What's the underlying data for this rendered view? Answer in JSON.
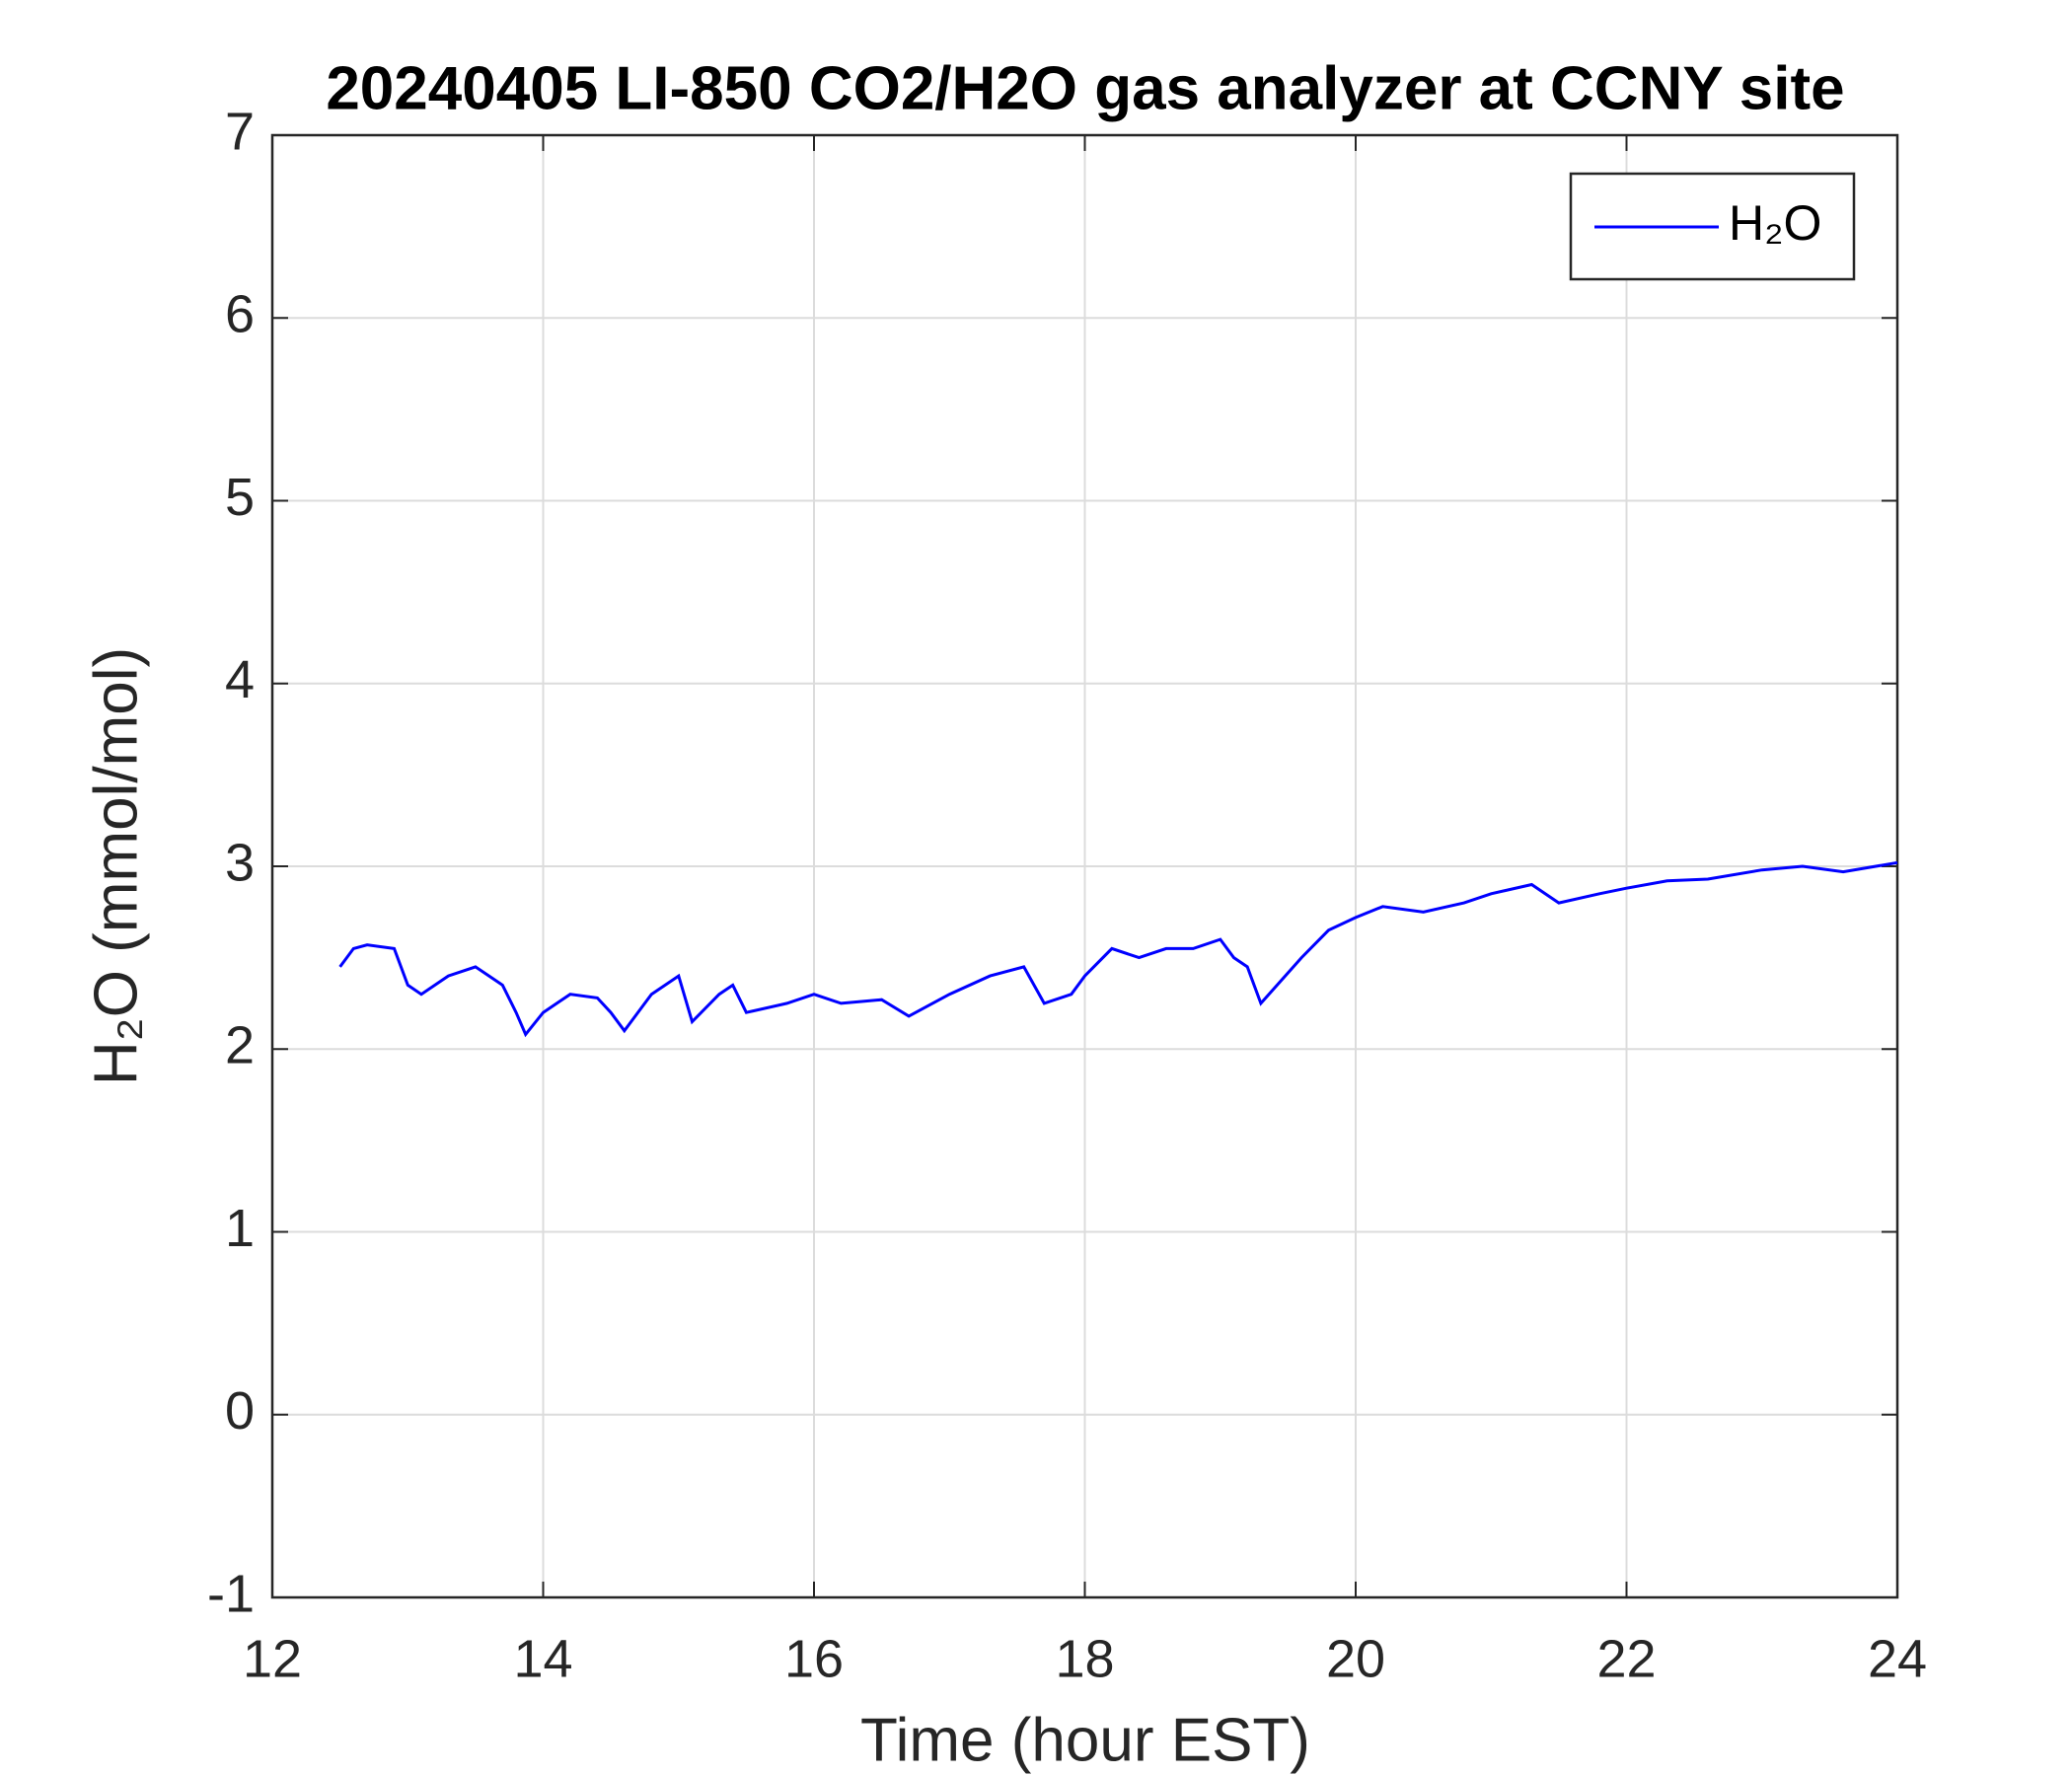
{
  "chart_data": {
    "type": "line",
    "title": "20240405 LI-850 CO2/H2O gas analyzer at CCNY site",
    "xlabel": "Time (hour EST)",
    "ylabel": "H₂O (mmol/mol)",
    "x": [
      12.5,
      12.6,
      12.7,
      12.9,
      13.0,
      13.1,
      13.3,
      13.5,
      13.6,
      13.7,
      13.8,
      13.87,
      14.0,
      14.2,
      14.4,
      14.5,
      14.6,
      14.8,
      15.0,
      15.1,
      15.3,
      15.4,
      15.5,
      15.8,
      16.0,
      16.2,
      16.5,
      16.7,
      17.0,
      17.3,
      17.55,
      17.7,
      17.9,
      18.0,
      18.2,
      18.4,
      18.6,
      18.8,
      19.0,
      19.1,
      19.2,
      19.3,
      19.6,
      19.8,
      20.0,
      20.2,
      20.5,
      20.8,
      21.0,
      21.3,
      21.5,
      21.8,
      22.0,
      22.3,
      22.6,
      23.0,
      23.3,
      23.6,
      24.0
    ],
    "series": [
      {
        "name": "H₂O",
        "color": "#0000ff",
        "values": [
          2.45,
          2.55,
          2.57,
          2.55,
          2.35,
          2.3,
          2.4,
          2.45,
          2.4,
          2.35,
          2.2,
          2.08,
          2.2,
          2.3,
          2.28,
          2.2,
          2.1,
          2.3,
          2.4,
          2.15,
          2.3,
          2.35,
          2.2,
          2.25,
          2.3,
          2.25,
          2.27,
          2.18,
          2.3,
          2.4,
          2.45,
          2.25,
          2.3,
          2.4,
          2.55,
          2.5,
          2.55,
          2.55,
          2.6,
          2.5,
          2.45,
          2.25,
          2.5,
          2.65,
          2.72,
          2.78,
          2.75,
          2.8,
          2.85,
          2.9,
          2.8,
          2.85,
          2.88,
          2.92,
          2.93,
          2.98,
          3.0,
          2.97,
          3.02
        ]
      }
    ],
    "xlim": [
      12,
      24
    ],
    "xticks": [
      12,
      14,
      16,
      18,
      20,
      22,
      24
    ],
    "ylim": [
      -1,
      7
    ],
    "yticks": [
      -1,
      0,
      1,
      2,
      3,
      4,
      5,
      6,
      7
    ],
    "grid": true,
    "legend": "upper right"
  }
}
